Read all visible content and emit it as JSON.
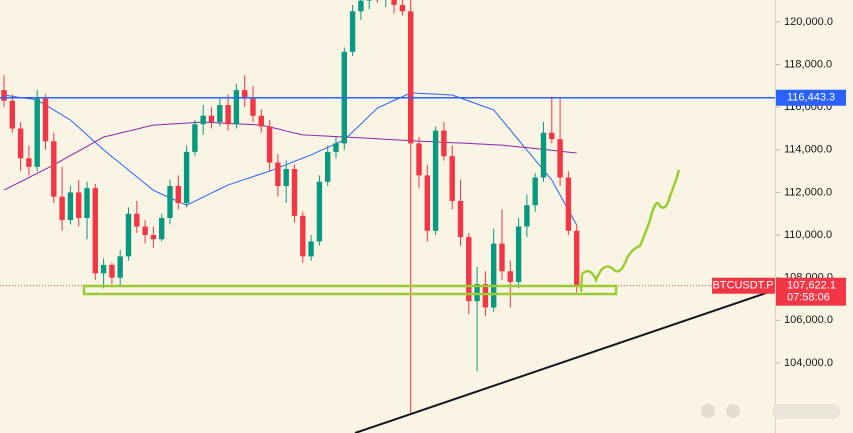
{
  "chart_data": {
    "type": "candlestick",
    "up_color": "#089981",
    "down_color": "#f23645",
    "open": [
      116800,
      116300,
      115000,
      113600,
      113200,
      116400,
      114400,
      111800,
      110700,
      112000,
      110800,
      112200,
      108200,
      108600,
      108000,
      109000,
      111000,
      110400,
      110000,
      109800,
      110800,
      112300,
      111500,
      113900,
      115200,
      115600,
      115300,
      116100,
      115200,
      116800,
      116400,
      115600,
      115100,
      113400,
      112300,
      113100,
      110900,
      109000,
      109700,
      112500,
      113900,
      114300,
      118600,
      120500,
      121000,
      121300,
      121100,
      121400,
      120800,
      120500,
      114300,
      112800,
      110200,
      114900,
      113700,
      111600,
      109900,
      106900,
      107700,
      106600,
      109600,
      108300,
      107800,
      110400,
      111400,
      112700,
      114800,
      114500,
      112700,
      110200
    ],
    "high": [
      117500,
      116600,
      115300,
      114200,
      116800,
      116600,
      114800,
      113200,
      112300,
      112600,
      112500,
      112400,
      108900,
      108700,
      109300,
      111300,
      111600,
      110700,
      110400,
      111000,
      112600,
      112800,
      114200,
      115400,
      116100,
      116000,
      116400,
      116600,
      117100,
      117500,
      117000,
      115900,
      115400,
      113800,
      113500,
      113300,
      111100,
      110000,
      112800,
      114200,
      114600,
      118800,
      120800,
      121200,
      121500,
      121600,
      121700,
      121800,
      121300,
      121400,
      114600,
      113300,
      115100,
      115300,
      114200,
      112600,
      110100,
      108500,
      108300,
      110300,
      111200,
      108800,
      110800,
      111900,
      112900,
      115300,
      116500,
      116400,
      113000,
      110500
    ],
    "low": [
      116000,
      114800,
      113000,
      112800,
      113000,
      114000,
      111500,
      110200,
      110500,
      110400,
      109800,
      107900,
      107500,
      107700,
      107600,
      108800,
      110100,
      109600,
      109400,
      109700,
      110500,
      111200,
      111300,
      113700,
      114700,
      115000,
      115100,
      114900,
      115000,
      116000,
      115300,
      114800,
      113000,
      111800,
      111500,
      110600,
      108700,
      108800,
      109500,
      112300,
      113600,
      114000,
      118400,
      120100,
      120600,
      120900,
      120700,
      120400,
      120300,
      101600,
      112200,
      109700,
      110000,
      113500,
      111200,
      109500,
      106300,
      103600,
      106200,
      106400,
      107900,
      106600,
      107500,
      109900,
      111100,
      112500,
      114300,
      112300,
      110000,
      107300
    ],
    "close": [
      116300,
      115000,
      113600,
      113200,
      116400,
      114400,
      111800,
      110700,
      112000,
      110800,
      112200,
      108200,
      108600,
      108000,
      109000,
      111000,
      110400,
      110000,
      109800,
      110800,
      112300,
      111500,
      113900,
      115200,
      115600,
      115300,
      116100,
      115200,
      116800,
      116400,
      115600,
      115100,
      113400,
      112300,
      113100,
      110900,
      109000,
      109700,
      112500,
      113900,
      114300,
      118600,
      120500,
      121000,
      121300,
      121100,
      121400,
      120800,
      120500,
      114300,
      112800,
      110200,
      114900,
      113700,
      111600,
      109900,
      106900,
      107700,
      106600,
      109600,
      108300,
      107800,
      110400,
      111400,
      112700,
      114800,
      114500,
      112700,
      110200,
      107622.1
    ],
    "series": [
      {
        "color": "#2962ff",
        "values": [
          116570,
          116510,
          116450,
          116400,
          116340,
          116100,
          115870,
          115630,
          115400,
          115050,
          114700,
          114350,
          114000,
          113680,
          113370,
          113050,
          112730,
          112420,
          112100,
          111920,
          111750,
          111570,
          111400,
          111590,
          111780,
          111970,
          112160,
          112350,
          112480,
          112610,
          112740,
          112870,
          113000,
          113150,
          113300,
          113460,
          113610,
          113760,
          113940,
          114110,
          114290,
          114460,
          114840,
          115210,
          115590,
          115960,
          116140,
          116320,
          116490,
          116670,
          116650,
          116630,
          116610,
          116590,
          116570,
          116430,
          116290,
          116150,
          116010,
          115870,
          115400,
          114930,
          114460,
          113990,
          113520,
          113050,
          112580,
          111880,
          111170,
          110470
        ]
      },
      {
        "color": "#8e24aa",
        "values": [
          112110,
          112310,
          112500,
          112700,
          112900,
          113090,
          113290,
          113510,
          113730,
          113940,
          114160,
          114380,
          114600,
          114690,
          114790,
          114880,
          114970,
          115070,
          115160,
          115180,
          115210,
          115230,
          115250,
          115280,
          115300,
          115280,
          115260,
          115240,
          115220,
          115200,
          115180,
          115160,
          115070,
          114980,
          114880,
          114790,
          114700,
          114680,
          114660,
          114640,
          114620,
          114600,
          114580,
          114560,
          114540,
          114520,
          114490,
          114470,
          114450,
          114430,
          114410,
          114390,
          114370,
          114350,
          114330,
          114320,
          114300,
          114280,
          114260,
          114240,
          114220,
          114180,
          114140,
          114100,
          114060,
          114020,
          113980,
          113930,
          113890,
          113850
        ]
      }
    ],
    "level": {
      "value": 116443.3,
      "label": "116,443.3",
      "color": "#2962ff"
    },
    "symbol": "BTCUSDT.P",
    "last_price": {
      "value": 107622.1,
      "label": "107,622.1"
    },
    "countdown": "07:58:06",
    "ylim": [
      100710,
      121030
    ],
    "yticks": [
      {
        "value": 104000,
        "label": "104,000.0"
      },
      {
        "value": 106000,
        "label": "106,000.0"
      },
      {
        "value": 108000,
        "label": "108,000.0"
      },
      {
        "value": 110000,
        "label": "110,000.0"
      },
      {
        "value": 112000,
        "label": "112,000.0"
      },
      {
        "value": 114000,
        "label": "114,000.0"
      },
      {
        "value": 116000,
        "label": "116,000.0"
      },
      {
        "value": 118000,
        "label": "118,000.0"
      },
      {
        "value": 120000,
        "label": "120,000.0"
      }
    ]
  }
}
